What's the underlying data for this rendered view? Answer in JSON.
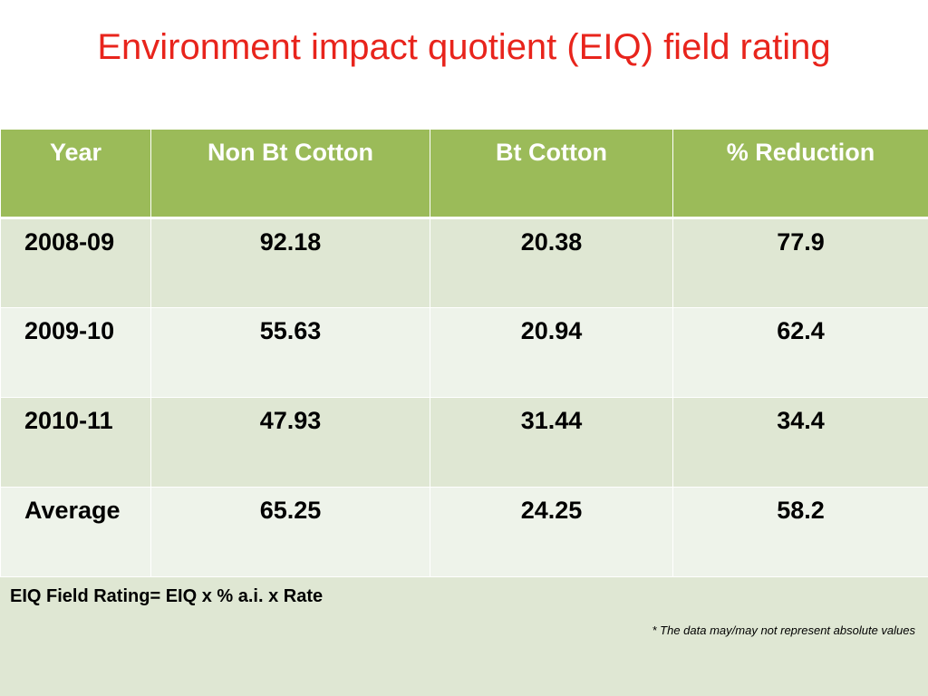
{
  "slide": {
    "title": "Environment impact quotient (EIQ) field rating"
  },
  "table": {
    "headers": [
      "Year",
      "Non Bt Cotton",
      "Bt Cotton",
      "% Reduction"
    ],
    "rows": [
      [
        "2008-09",
        "92.18",
        "20.38",
        "77.9"
      ],
      [
        "2009-10",
        "55.63",
        "20.94",
        "62.4"
      ],
      [
        "2010-11",
        "47.93",
        "31.44",
        "34.4"
      ],
      [
        "Average",
        "65.25",
        "24.25",
        "58.2"
      ]
    ]
  },
  "footer": {
    "formula": "EIQ Field Rating= EIQ x % a.i. x Rate",
    "disclaimer": "* The data may/may not represent absolute values"
  },
  "colors": {
    "title": "#e8241c",
    "header_bg": "#9bbb59",
    "row_even_bg": "#dfe7d3",
    "row_odd_bg": "#eef3ea"
  }
}
